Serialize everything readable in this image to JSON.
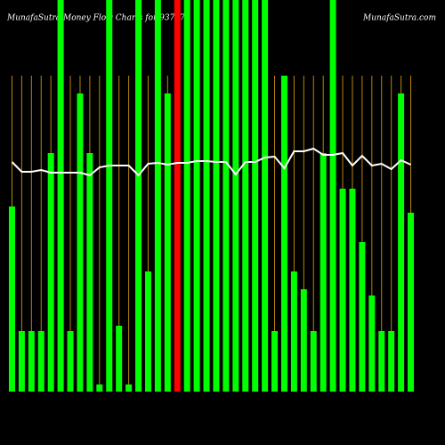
{
  "chart_data": {
    "type": "bar",
    "title": "MunafaSutra  Money Flow  Charts for 937775",
    "subtitle": "MunafaSutra.com",
    "values": [
      208,
      68,
      68,
      68,
      268,
      440,
      68,
      335,
      268,
      8,
      440,
      74,
      8,
      440,
      135,
      440,
      335,
      440,
      440,
      440,
      440,
      440,
      440,
      440,
      440,
      440,
      440,
      68,
      355,
      135,
      115,
      68,
      268,
      440,
      228,
      228,
      168,
      108,
      68,
      68,
      335,
      201
    ],
    "bar_colors": [
      "#00ff00",
      "#00ff00",
      "#00ff00",
      "#00ff00",
      "#00ff00",
      "#00ff00",
      "#00ff00",
      "#00ff00",
      "#00ff00",
      "#00ff00",
      "#00ff00",
      "#00ff00",
      "#00ff00",
      "#00ff00",
      "#00ff00",
      "#00ff00",
      "#00ff00",
      "#ff0000",
      "#00ff00",
      "#00ff00",
      "#00ff00",
      "#00ff00",
      "#00ff00",
      "#00ff00",
      "#00ff00",
      "#00ff00",
      "#00ff00",
      "#00ff00",
      "#00ff00",
      "#00ff00",
      "#00ff00",
      "#00ff00",
      "#00ff00",
      "#00ff00",
      "#00ff00",
      "#00ff00",
      "#00ff00",
      "#00ff00",
      "#00ff00",
      "#00ff00",
      "#00ff00",
      "#00ff00"
    ],
    "line_values": [
      258,
      247,
      247,
      249,
      246,
      246,
      246,
      246,
      243,
      252,
      254,
      254,
      254,
      243,
      256,
      257,
      255,
      257,
      257,
      259,
      259,
      258,
      258,
      244,
      258,
      258,
      263,
      264,
      251,
      270,
      270,
      273,
      266,
      266,
      268,
      254,
      265,
      254,
      256,
      250,
      260,
      255
    ],
    "line_color": "#ffffff",
    "grid_color": "#b8860b",
    "ylim": [
      0,
      440
    ]
  }
}
